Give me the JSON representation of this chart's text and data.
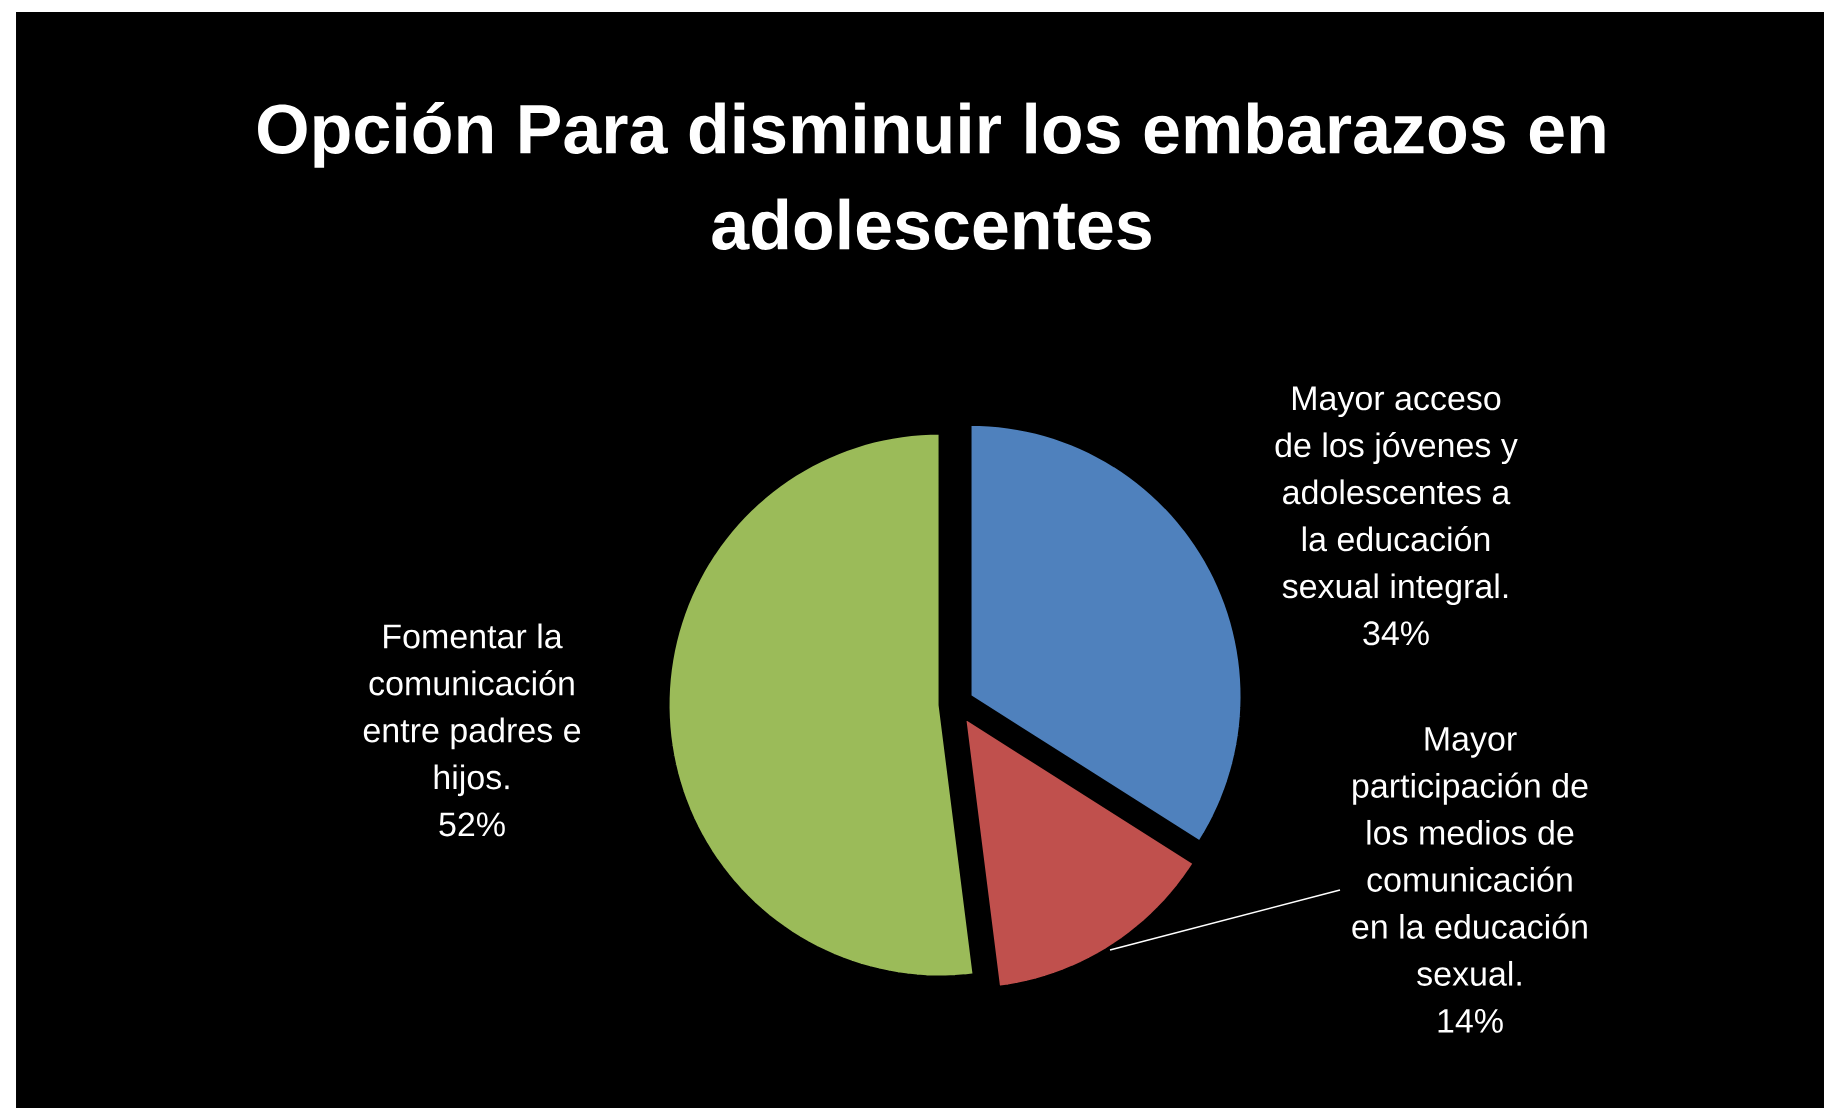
{
  "chart_data": {
    "type": "pie",
    "title": "Opción Para disminuir los embarazos en adolescentes",
    "categories": [
      "Mayor acceso de los jóvenes y adolescentes a la educación sexual integral.",
      "Mayor participación de los medios de comunicación en la educación sexual.",
      "Fomentar la comunicación entre padres e hijos."
    ],
    "values": [
      34,
      14,
      52
    ],
    "value_labels": [
      "34%",
      "14%",
      "52%"
    ],
    "colors": [
      "#4f81bd",
      "#c0504d",
      "#9bbb59"
    ]
  }
}
